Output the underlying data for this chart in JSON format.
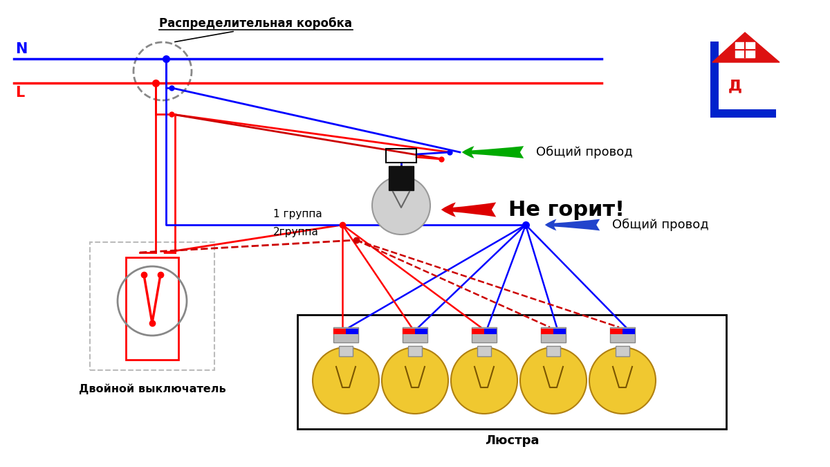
{
  "bg_color": "#ffffff",
  "dist_box_label": "Распределительная коробка",
  "N_label": "N",
  "L_label": "L",
  "obshiy_label": "Общий провод",
  "ne_gorit_label": "Не горит!",
  "double_switch_label": "Двойной выключатель",
  "gruppa1_label": "1 группа",
  "gruppa2_label": "2группа",
  "lyustra_label": "Люстра",
  "blue": "#0000ff",
  "red": "#ff0000",
  "dark_red": "#cc0000",
  "gray": "#888888",
  "black": "#000000",
  "lw_main": 2.0,
  "lw_thin": 1.5
}
